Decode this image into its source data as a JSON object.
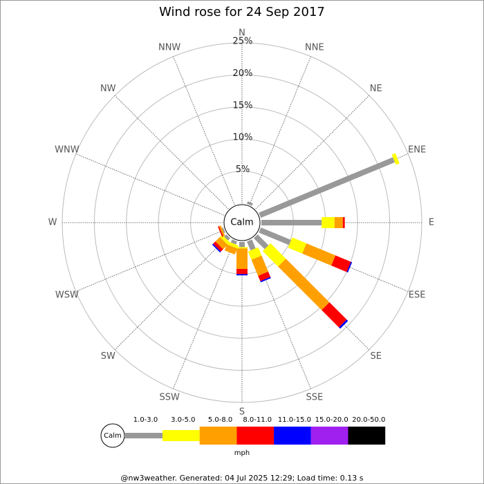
{
  "chart_data": {
    "type": "rose",
    "title": "Wind rose for 24 Sep 2017",
    "categories": [
      "N",
      "NNE",
      "NE",
      "ENE",
      "E",
      "ESE",
      "SE",
      "SSE",
      "S",
      "SSW",
      "SW",
      "WSW",
      "W",
      "WNW",
      "NW",
      "NNW"
    ],
    "center_label": "Calm",
    "ylim": [
      0,
      25
    ],
    "yticks": [
      {
        "value": 5,
        "label": "5%"
      },
      {
        "value": 10,
        "label": "10%"
      },
      {
        "value": 15,
        "label": "15%"
      },
      {
        "value": 20,
        "label": "20%"
      },
      {
        "value": 25,
        "label": "25%"
      }
    ],
    "series": [
      {
        "name": "1.0-3.0",
        "color": "#999999",
        "values": [
          0,
          0.4,
          0,
          22.6,
          9.4,
          5.1,
          2.4,
          1.5,
          0.8,
          0.5,
          0.5,
          0.2,
          0,
          0,
          0,
          0
        ]
      },
      {
        "name": "3.0-5.0",
        "color": "#ffff00",
        "values": [
          0,
          0,
          0,
          0.6,
          2.0,
          2.4,
          3.4,
          1.4,
          0.2,
          0.5,
          0.5,
          0,
          0,
          0,
          0,
          0
        ]
      },
      {
        "name": "5.0-8.0",
        "color": "#ffa000",
        "values": [
          0,
          0,
          0,
          0,
          1.3,
          4.9,
          9.6,
          2.7,
          3.2,
          1.0,
          1.0,
          0.3,
          0,
          0,
          0,
          0
        ]
      },
      {
        "name": "8.0-11.0",
        "color": "#ff0000",
        "values": [
          0,
          0,
          0,
          0,
          0.3,
          2.6,
          3.8,
          0.9,
          0.8,
          0,
          0.5,
          0.2,
          0,
          0,
          0,
          0
        ]
      },
      {
        "name": "11.0-15.0",
        "color": "#0000ff",
        "values": [
          0,
          0,
          0,
          0,
          0,
          0.2,
          0.3,
          0.2,
          0.2,
          0,
          0.2,
          0,
          0,
          0,
          0,
          0
        ]
      },
      {
        "name": "15.0-20.0",
        "color": "#a020f0",
        "values": [
          0,
          0,
          0,
          0,
          0,
          0,
          0,
          0,
          0,
          0,
          0,
          0,
          0,
          0,
          0,
          0
        ]
      },
      {
        "name": "20.0-50.0",
        "color": "#000000",
        "values": [
          0,
          0,
          0,
          0,
          0,
          0,
          0,
          0,
          0,
          0,
          0,
          0,
          0,
          0,
          0,
          0
        ]
      }
    ],
    "legend_unit": "mph",
    "footer": "@nw3weather. Generated: 04 Jul 2025 12:29; Load time: 0.13 s"
  }
}
